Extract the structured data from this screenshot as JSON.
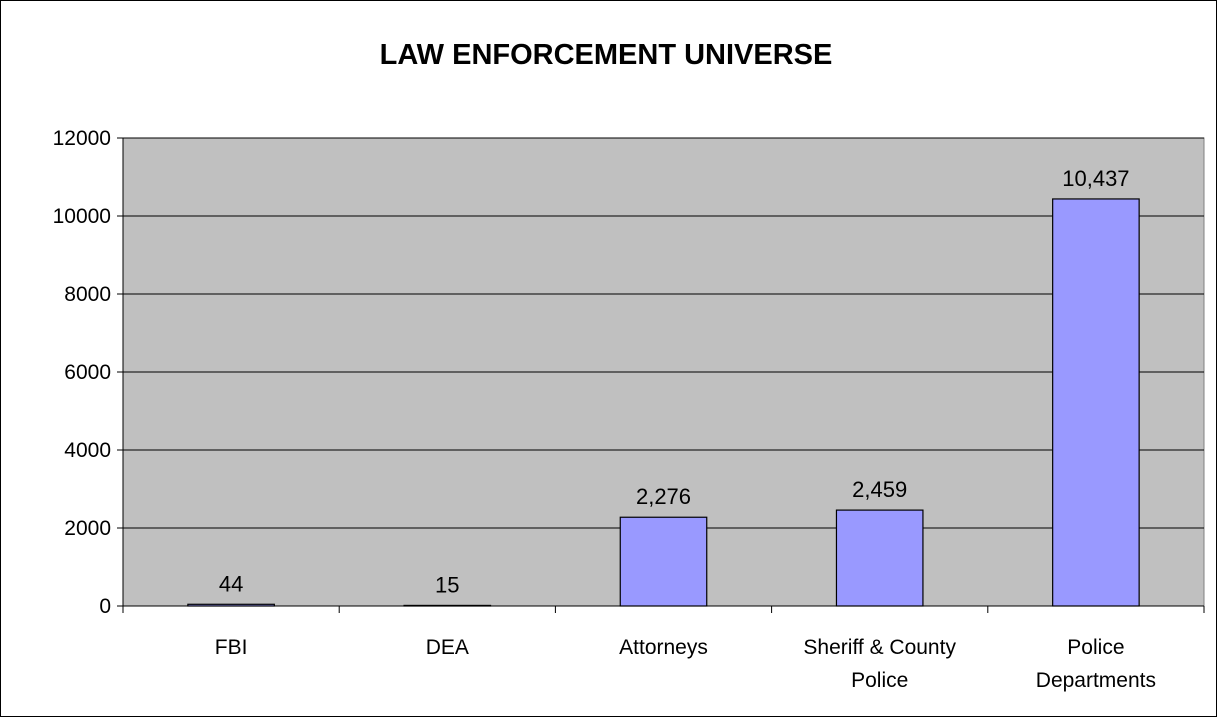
{
  "chart_data": {
    "type": "bar",
    "title": "LAW ENFORCEMENT UNIVERSE",
    "xlabel": "",
    "ylabel": "",
    "categories": [
      [
        "FBI"
      ],
      [
        "DEA"
      ],
      [
        "Attorneys"
      ],
      [
        "Sheriff & County",
        "Police"
      ],
      [
        "Police",
        "Departments"
      ]
    ],
    "values": [
      44,
      15,
      2276,
      2459,
      10437
    ],
    "data_labels": [
      "44",
      "15",
      "2,276",
      "2,459",
      "10,437"
    ],
    "ylim": [
      0,
      12000
    ],
    "yticks": [
      0,
      2000,
      4000,
      6000,
      8000,
      10000,
      12000
    ],
    "grid": true,
    "legend": "none",
    "colors": {
      "plot_background": "#c0c0c0",
      "bar_fill": "#9999ff",
      "bar_stroke": "#000000",
      "gridline": "#000000"
    }
  }
}
